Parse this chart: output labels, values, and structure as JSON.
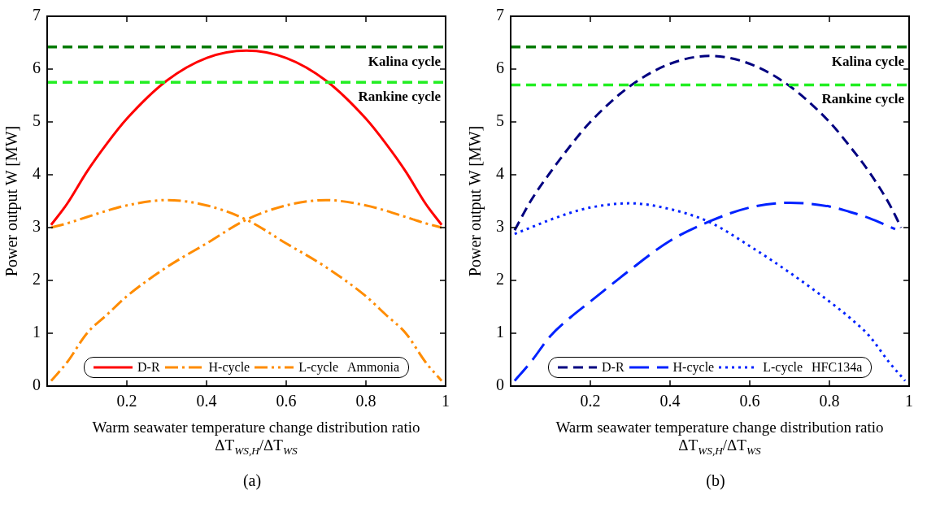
{
  "chart_data": [
    {
      "type": "line",
      "xlabel": "Warm seawater temperature change distribution ratio ΔT$_{WS,H}$/ΔT$_{WS}$",
      "ylabel": "Power output W [MW]",
      "legend_title": "Ammonia",
      "legend": "bottom",
      "marker": "none",
      "xlim": [
        0,
        1
      ],
      "xticks": [
        {
          "value": 0,
          "label": null
        },
        0.2,
        0.4,
        0.6,
        0.8,
        1
      ],
      "ylim": [
        0,
        7
      ],
      "yticks": [
        0,
        1,
        2,
        3,
        4,
        5,
        6,
        7
      ],
      "grid": false,
      "series": [
        {
          "name": "D-R",
          "color": "#ff0000",
          "line_style": "solid",
          "x": [
            0.01,
            0.05,
            0.1,
            0.15,
            0.2,
            0.3,
            0.4,
            0.5,
            0.6,
            0.7,
            0.8,
            0.85,
            0.9,
            0.95,
            0.99
          ],
          "values": [
            3.05,
            3.45,
            4.06,
            4.59,
            5.06,
            5.78,
            6.21,
            6.35,
            6.21,
            5.78,
            5.06,
            4.59,
            4.06,
            3.45,
            3.05
          ]
        },
        {
          "name": "H-cycle",
          "color": "#ff8c00",
          "line_style": "dashdot",
          "x": [
            0.01,
            0.05,
            0.1,
            0.15,
            0.2,
            0.3,
            0.4,
            0.5,
            0.6,
            0.7,
            0.8,
            0.85,
            0.9,
            0.95,
            0.99
          ],
          "values": [
            0.1,
            0.45,
            1.0,
            1.35,
            1.7,
            2.25,
            2.7,
            3.15,
            3.42,
            3.52,
            3.42,
            3.32,
            3.2,
            3.08,
            3.0
          ]
        },
        {
          "name": "L-cycle",
          "color": "#ff8c00",
          "line_style": "dashdotdot",
          "x": [
            0.01,
            0.05,
            0.1,
            0.15,
            0.2,
            0.3,
            0.4,
            0.5,
            0.6,
            0.7,
            0.8,
            0.85,
            0.9,
            0.95,
            0.99
          ],
          "values": [
            3.0,
            3.08,
            3.2,
            3.32,
            3.42,
            3.52,
            3.42,
            3.15,
            2.7,
            2.25,
            1.7,
            1.35,
            1.0,
            0.45,
            0.1
          ]
        }
      ],
      "ref_lines": [
        {
          "axis": "y",
          "value": 6.42,
          "label": "Kalina cycle",
          "color": "#007a00",
          "line_style": "dashed"
        },
        {
          "axis": "y",
          "value": 5.75,
          "label": "Rankine cycle",
          "color": "#22ee22",
          "line_style": "dashed"
        }
      ],
      "annotations": [
        "(a)"
      ]
    },
    {
      "type": "line",
      "xlabel": "Warm seawater temperature change distribution ratio ΔT$_{WS,H}$/ΔT$_{WS}$",
      "ylabel": "Power output W [MW]",
      "legend_title": "HFC134a",
      "legend": "bottom",
      "marker": "none",
      "xlim": [
        0,
        1
      ],
      "xticks": [
        {
          "value": 0,
          "label": null
        },
        0.2,
        0.4,
        0.6,
        0.8,
        1
      ],
      "ylim": [
        0,
        7
      ],
      "yticks": [
        0,
        1,
        2,
        3,
        4,
        5,
        6,
        7
      ],
      "grid": false,
      "series": [
        {
          "name": "D-R",
          "color": "#000080",
          "line_style": "dashed",
          "x": [
            0.01,
            0.05,
            0.1,
            0.15,
            0.2,
            0.3,
            0.4,
            0.5,
            0.6,
            0.7,
            0.8,
            0.85,
            0.9,
            0.95,
            0.98
          ],
          "values": [
            2.95,
            3.5,
            4.05,
            4.55,
            5.0,
            5.68,
            6.1,
            6.25,
            6.1,
            5.68,
            5.0,
            4.55,
            4.05,
            3.45,
            3.0
          ]
        },
        {
          "name": "H-cycle",
          "color": "#0022ff",
          "line_style": "longdash",
          "x": [
            0.01,
            0.05,
            0.1,
            0.15,
            0.2,
            0.3,
            0.4,
            0.5,
            0.6,
            0.7,
            0.8,
            0.85,
            0.9,
            0.965
          ],
          "values": [
            0.1,
            0.45,
            0.95,
            1.3,
            1.6,
            2.2,
            2.75,
            3.12,
            3.38,
            3.47,
            3.4,
            3.3,
            3.18,
            2.97
          ]
        },
        {
          "name": "L-cycle",
          "color": "#0022ff",
          "line_style": "dotted",
          "x": [
            0.01,
            0.05,
            0.1,
            0.15,
            0.2,
            0.3,
            0.4,
            0.5,
            0.6,
            0.7,
            0.8,
            0.85,
            0.9,
            0.95,
            0.99
          ],
          "values": [
            2.88,
            3.0,
            3.15,
            3.28,
            3.38,
            3.46,
            3.35,
            3.1,
            2.65,
            2.15,
            1.6,
            1.3,
            0.95,
            0.45,
            0.1
          ]
        }
      ],
      "ref_lines": [
        {
          "axis": "y",
          "value": 6.42,
          "label": "Kalina cycle",
          "color": "#007a00",
          "line_style": "dashed"
        },
        {
          "axis": "y",
          "value": 5.7,
          "label": "Rankine cycle",
          "color": "#22ee22",
          "line_style": "dashed"
        }
      ],
      "annotations": [
        "(b)"
      ]
    }
  ]
}
